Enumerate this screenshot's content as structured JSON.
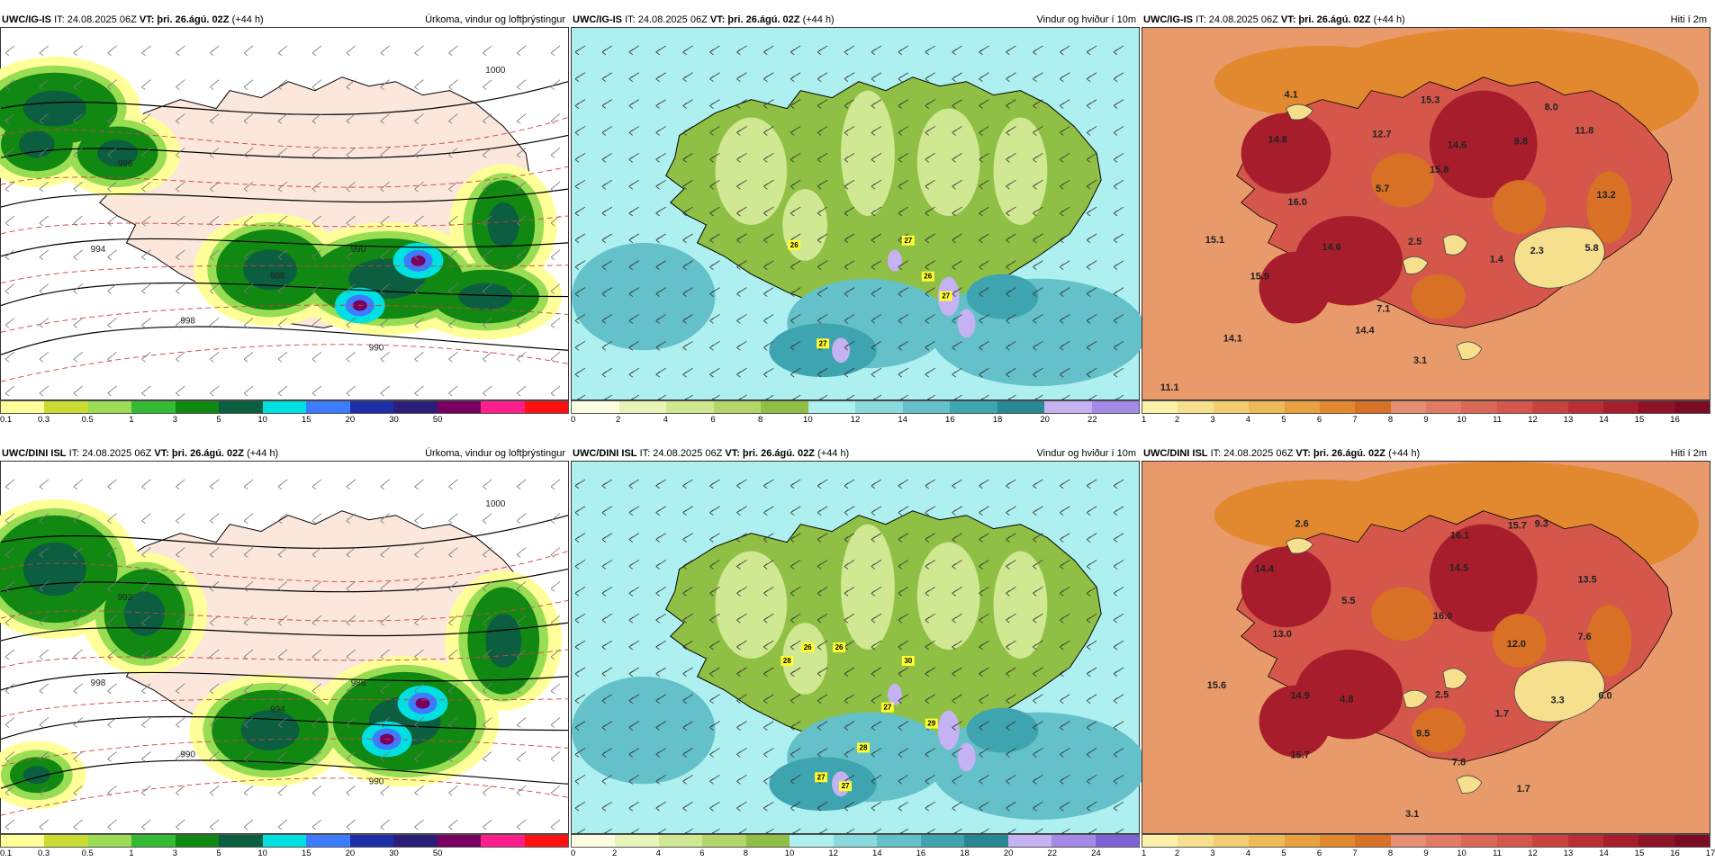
{
  "colors": {
    "precip": [
      "#ffff99",
      "#c8dc32",
      "#99dd55",
      "#33bb33",
      "#118811",
      "#0b5e3f",
      "#00e0e0",
      "#3d7bff",
      "#1d2fa8",
      "#2a1e7a",
      "#780060",
      "#ff1e8c",
      "#ff1010"
    ],
    "wind": [
      "#fbfce0",
      "#e8f4b8",
      "#cfe891",
      "#b3d66b",
      "#8fbf45",
      "#aef0f0",
      "#8ad9dd",
      "#64c0c9",
      "#3ea4b0",
      "#278893",
      "#c4b2f2",
      "#a48ae6",
      "#7f61d8",
      "#5132c2",
      "#ffaaaa"
    ],
    "temp": [
      "#fbf1a8",
      "#f6e08e",
      "#f2cd72",
      "#eeb957",
      "#e9a13f",
      "#e2882e",
      "#d87026",
      "#e58e72",
      "#e27a64",
      "#dc6856",
      "#d5564b",
      "#ca4240",
      "#bb2f34",
      "#a81d2c",
      "#8f1328",
      "#7a0d24"
    ]
  },
  "panels": [
    {
      "model": "UWC/IG-IS",
      "it_label": "IT: 24.08.2025 06Z",
      "vt_label": "VT: þri. 26.ágú. 02Z",
      "lead": "(+44 h)",
      "title": "Úrkoma, vindur og loftþrýstingur",
      "kind": "precip",
      "ticks": [
        "0.1",
        "0.3",
        "0.5",
        "1",
        "3",
        "5",
        "10",
        "15",
        "20",
        "30",
        "50"
      ],
      "contour_labels": [
        "994",
        "996",
        "998",
        "990",
        "988",
        "990",
        "1000"
      ],
      "value_labels": []
    },
    {
      "model": "UWC/IG-IS",
      "it_label": "IT: 24.08.2025 06Z",
      "vt_label": "VT: þri. 26.ágú. 02Z",
      "lead": "(+44 h)",
      "title": "Vindur og hviður í 10m",
      "kind": "wind",
      "ticks": [
        "0",
        "2",
        "4",
        "6",
        "8",
        "10",
        "12",
        "14",
        "16",
        "18",
        "20",
        "22"
      ],
      "contour_labels": [],
      "value_labels": [
        "26",
        "27",
        "26",
        "27",
        "27"
      ]
    },
    {
      "model": "UWC/IG-IS",
      "it_label": "IT: 24.08.2025 06Z",
      "vt_label": "VT: þri. 26.ágú. 02Z",
      "lead": "(+44 h)",
      "title": "Hiti í 2m",
      "kind": "temp",
      "ticks": [
        "1",
        "2",
        "3",
        "4",
        "5",
        "6",
        "7",
        "8",
        "9",
        "10",
        "11",
        "12",
        "13",
        "14",
        "15",
        "16"
      ],
      "contour_labels": [],
      "value_labels": [
        "4.1",
        "14.8",
        "12.7",
        "15.3",
        "14.6",
        "9.8",
        "8.0",
        "11.8",
        "15.8",
        "5.7",
        "16.0",
        "13.2",
        "15.1",
        "14.6",
        "2.5",
        "2.3",
        "5.8",
        "1.4",
        "15.9",
        "7.1",
        "14.1",
        "14.4",
        "3.1",
        "11.1"
      ]
    },
    {
      "model": "UWC/DINI ISL",
      "it_label": "IT: 24.08.2025 06Z",
      "vt_label": "VT: þri. 26.ágú. 02Z",
      "lead": "(+44 h)",
      "title": "Úrkoma, vindur og loftþrýstingur",
      "kind": "precip",
      "ticks": [
        "0.1",
        "0.3",
        "0.5",
        "1",
        "3",
        "5",
        "10",
        "15",
        "20",
        "30",
        "50"
      ],
      "contour_labels": [
        "998",
        "992",
        "990",
        "988",
        "994",
        "990",
        "1000"
      ],
      "value_labels": []
    },
    {
      "model": "UWC/DINI ISL",
      "it_label": "IT: 24.08.2025 06Z",
      "vt_label": "VT: þri. 26.ágú. 02Z",
      "lead": "(+44 h)",
      "title": "Vindur og hviður í 10m",
      "kind": "wind",
      "ticks": [
        "0",
        "2",
        "4",
        "6",
        "8",
        "10",
        "12",
        "14",
        "16",
        "18",
        "20",
        "22",
        "24"
      ],
      "contour_labels": [],
      "value_labels": [
        "26",
        "26",
        "28",
        "30",
        "27",
        "29",
        "28",
        "27",
        "27"
      ]
    },
    {
      "model": "UWC/DINI ISL",
      "it_label": "IT: 24.08.2025 06Z",
      "vt_label": "VT: þri. 26.ágú. 02Z",
      "lead": "(+44 h)",
      "title": "Hiti í 2m",
      "kind": "temp",
      "ticks": [
        "1",
        "2",
        "3",
        "4",
        "5",
        "6",
        "7",
        "8",
        "9",
        "10",
        "11",
        "12",
        "13",
        "14",
        "15",
        "16",
        "17"
      ],
      "contour_labels": [],
      "value_labels": [
        "2.6",
        "16.1",
        "15.7",
        "9.3",
        "14.4",
        "14.5",
        "13.5",
        "5.5",
        "16.0",
        "13.0",
        "7.6",
        "12.0",
        "15.6",
        "14.9",
        "4.8",
        "2.5",
        "1.7",
        "3.3",
        "6.0",
        "9.5",
        "15.7",
        "7.8",
        "1.7",
        "3.1"
      ]
    }
  ]
}
